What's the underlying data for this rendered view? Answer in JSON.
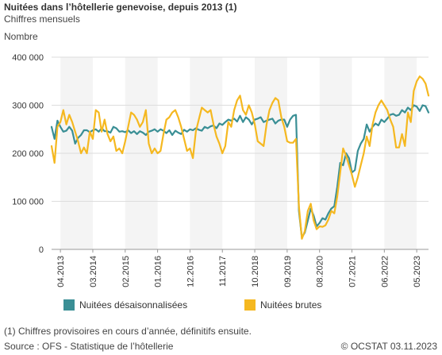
{
  "title": "Nuitées dans l’hôtellerie genevoise, depuis 2013 (1)",
  "subtitle": "Chiffres mensuels",
  "y_unit": "Nombre",
  "footnote": "(1) Chiffres provisoires en cours d’année, définitifs ensuite.",
  "source": "Source : OFS - Statistique de l’hôtellerie",
  "copyright": "© OCSTAT 03.11.2023",
  "colors": {
    "seasonal_adjusted": "#3a8f95",
    "raw": "#f5b820",
    "band": "#f4f4f4",
    "grid": "#dddddd"
  },
  "chart_data": {
    "type": "line",
    "x_start": "2013-01",
    "x_end": "2023-09",
    "ylim": [
      0,
      400000
    ],
    "y_ticks": [
      "0",
      "100 000",
      "200 000",
      "300 000",
      "400 000"
    ],
    "x_tick_labels": [
      "04.2013",
      "03.2014",
      "02.2015",
      "01.2016",
      "12.2016",
      "11.2017",
      "10.2018",
      "09.2019",
      "08.2020",
      "07.2021",
      "06.2022",
      "05.2023"
    ],
    "grid": true,
    "legend_position": "bottom",
    "series": [
      {
        "name": "Nuitées désaisonnalisées",
        "color": "#3a8f95",
        "values": [
          255000,
          230000,
          268000,
          255000,
          245000,
          247000,
          255000,
          247000,
          220000,
          232000,
          238000,
          248000,
          248000,
          244000,
          248000,
          250000,
          245000,
          252000,
          246000,
          246000,
          243000,
          255000,
          252000,
          245000,
          246000,
          244000,
          248000,
          242000,
          246000,
          240000,
          246000,
          243000,
          238000,
          245000,
          247000,
          250000,
          245000,
          250000,
          247000,
          242000,
          248000,
          238000,
          247000,
          243000,
          240000,
          249000,
          245000,
          250000,
          248000,
          252000,
          249000,
          247000,
          255000,
          252000,
          256000,
          258000,
          252000,
          262000,
          259000,
          265000,
          270000,
          268000,
          272000,
          266000,
          278000,
          265000,
          275000,
          270000,
          260000,
          270000,
          272000,
          275000,
          265000,
          268000,
          270000,
          272000,
          262000,
          268000,
          270000,
          270000,
          255000,
          270000,
          278000,
          280000,
          80000,
          25000,
          35000,
          60000,
          85000,
          70000,
          48000,
          55000,
          65000,
          62000,
          75000,
          85000,
          90000,
          130000,
          180000,
          175000,
          200000,
          190000,
          160000,
          165000,
          205000,
          220000,
          230000,
          260000,
          245000,
          255000,
          262000,
          258000,
          270000,
          265000,
          272000,
          280000,
          282000,
          278000,
          280000,
          290000,
          285000,
          295000,
          290000,
          300000,
          297000,
          288000,
          300000,
          298000,
          285000
        ]
      },
      {
        "name": "Nuitées brutes",
        "color": "#f5b820",
        "values": [
          215000,
          180000,
          255000,
          265000,
          290000,
          260000,
          280000,
          265000,
          245000,
          225000,
          200000,
          212000,
          200000,
          245000,
          230000,
          290000,
          285000,
          245000,
          270000,
          240000,
          225000,
          235000,
          205000,
          210000,
          200000,
          225000,
          255000,
          285000,
          280000,
          270000,
          255000,
          265000,
          290000,
          220000,
          200000,
          210000,
          200000,
          205000,
          240000,
          270000,
          275000,
          285000,
          290000,
          275000,
          255000,
          230000,
          205000,
          210000,
          190000,
          245000,
          270000,
          295000,
          290000,
          285000,
          290000,
          260000,
          235000,
          220000,
          200000,
          215000,
          265000,
          255000,
          290000,
          310000,
          320000,
          290000,
          280000,
          300000,
          285000,
          260000,
          225000,
          220000,
          215000,
          260000,
          290000,
          305000,
          315000,
          310000,
          275000,
          255000,
          225000,
          222000,
          222000,
          230000,
          90000,
          22000,
          38000,
          80000,
          95000,
          60000,
          42000,
          48000,
          47000,
          50000,
          62000,
          80000,
          75000,
          110000,
          160000,
          210000,
          195000,
          175000,
          155000,
          130000,
          150000,
          175000,
          200000,
          235000,
          215000,
          260000,
          285000,
          300000,
          310000,
          300000,
          290000,
          270000,
          255000,
          212000,
          212000,
          240000,
          215000,
          285000,
          265000,
          330000,
          350000,
          360000,
          355000,
          345000,
          320000
        ]
      }
    ]
  }
}
